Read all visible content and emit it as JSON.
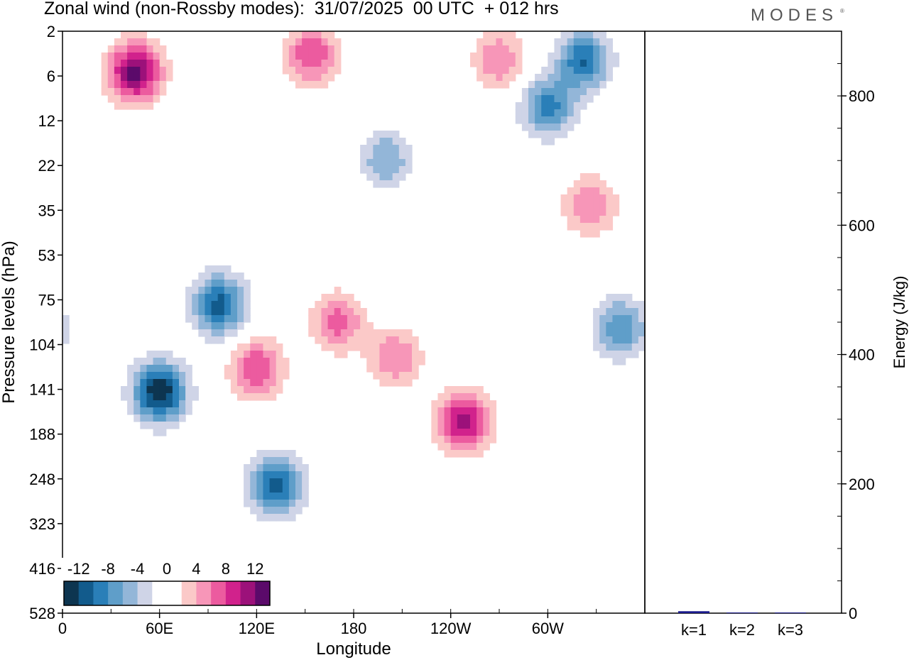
{
  "header": {
    "title": "Zonal wind (non-Rossby modes):  31/07/2025  00 UTC  + 012 hrs",
    "logo": "MODES",
    "logo_mark": "®"
  },
  "chart_data": [
    {
      "type": "heatmap",
      "title": "Zonal wind (non-Rossby modes)",
      "xlabel": "Longitude",
      "ylabel": "Pressure levels (hPa)",
      "x_ticks": [
        "0",
        "60E",
        "120E",
        "180",
        "120W",
        "60W"
      ],
      "x_tick_values": [
        0,
        60,
        120,
        180,
        240,
        300
      ],
      "xlim": [
        0,
        360
      ],
      "y_ticks": [
        "2",
        "6",
        "12",
        "22",
        "35",
        "53",
        "75",
        "104",
        "141",
        "188",
        "248",
        "323",
        "416",
        "528"
      ],
      "yaxis": "pressure levels, top = 2 hPa, bottom = 528 hPa",
      "colorbar": {
        "labels": [
          "-12",
          "-8",
          "-4",
          "0",
          "4",
          "8",
          "12"
        ],
        "levels": [
          -14,
          -12,
          -10,
          -8,
          -6,
          -4,
          -2,
          0,
          2,
          4,
          6,
          8,
          10,
          12,
          14
        ],
        "colors": [
          "#0d3550",
          "#125b8c",
          "#2a7fb8",
          "#5f9ec9",
          "#93b6d8",
          "#cfd4e7",
          "#ffffff",
          "#ffffff",
          "#fbc9c8",
          "#f796b8",
          "#ec5b9f",
          "#d1228c",
          "#9c117a",
          "#5b0a6a"
        ]
      },
      "features": [
        {
          "lon": 45,
          "lev": 0.07,
          "value": 13
        },
        {
          "lon": 97,
          "lev": 0.47,
          "value": -11
        },
        {
          "lon": 60,
          "lev": 0.62,
          "value": -14
        },
        {
          "lon": 132,
          "lev": 0.78,
          "value": -11
        },
        {
          "lon": 248,
          "lev": 0.67,
          "value": 11
        },
        {
          "lon": 120,
          "lev": 0.58,
          "value": 8
        },
        {
          "lon": 170,
          "lev": 0.5,
          "value": 7
        },
        {
          "lon": 206,
          "lev": 0.56,
          "value": 6
        },
        {
          "lon": 322,
          "lev": 0.05,
          "value": -10
        },
        {
          "lon": 300,
          "lev": 0.13,
          "value": -9
        },
        {
          "lon": 200,
          "lev": 0.22,
          "value": -6
        },
        {
          "lon": 345,
          "lev": 0.51,
          "value": -8
        },
        {
          "lon": 326,
          "lev": 0.3,
          "value": 6
        },
        {
          "lon": 154,
          "lev": 0.04,
          "value": 8
        },
        {
          "lon": 270,
          "lev": 0.05,
          "value": 6
        }
      ]
    },
    {
      "type": "bar",
      "title": "",
      "xlabel": "",
      "ylabel": "Energy (J/kg)",
      "categories": [
        "k=1",
        "k=2",
        "k=3"
      ],
      "values": [
        3,
        1,
        1
      ],
      "ylim": [
        0,
        900
      ],
      "y_ticks": [
        "0",
        "200",
        "400",
        "600",
        "800"
      ],
      "y_tick_values": [
        0,
        200,
        400,
        600,
        800
      ],
      "bar_color": "#1a1a8c"
    }
  ]
}
